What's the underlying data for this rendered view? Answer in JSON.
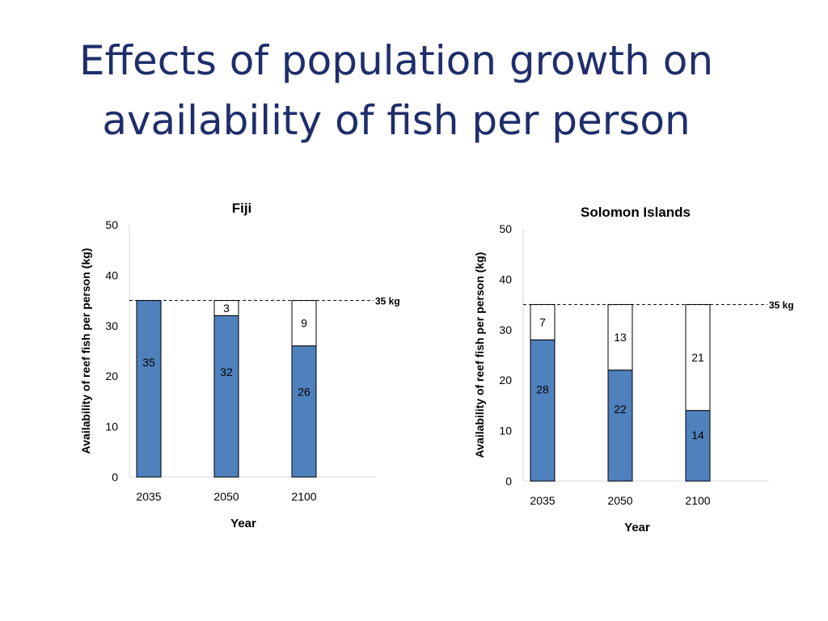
{
  "slide": {
    "title_line1": "Effects of population growth on",
    "title_line2": "availability of fish per person"
  },
  "chart_data": [
    {
      "type": "bar",
      "stacked": true,
      "title": "Fiji",
      "xlabel": "Year",
      "ylabel": "Availability of reef fish per person (kg)",
      "categories": [
        "2035",
        "2050",
        "2100"
      ],
      "ylim": [
        0,
        50
      ],
      "yticks": [
        0,
        10,
        20,
        30,
        40,
        50
      ],
      "series": [
        {
          "values": [
            35,
            32,
            26
          ],
          "color": "#4f81bd"
        },
        {
          "values": [
            0,
            3,
            9
          ],
          "color": "#ffffff"
        }
      ],
      "reference_line": {
        "value": 35,
        "label": "35 kg",
        "style": "dashed"
      },
      "grid": false
    },
    {
      "type": "bar",
      "stacked": true,
      "title": "Solomon Islands",
      "xlabel": "Year",
      "ylabel": "Availability of reef fish per person (kg)",
      "categories": [
        "2035",
        "2050",
        "2100"
      ],
      "ylim": [
        0,
        50
      ],
      "yticks": [
        0,
        10,
        20,
        30,
        40,
        50
      ],
      "series": [
        {
          "values": [
            28,
            22,
            14
          ],
          "color": "#4f81bd"
        },
        {
          "values": [
            7,
            13,
            21
          ],
          "color": "#ffffff"
        }
      ],
      "reference_line": {
        "value": 35,
        "label": "35 kg",
        "style": "dashed"
      },
      "grid": false
    }
  ]
}
